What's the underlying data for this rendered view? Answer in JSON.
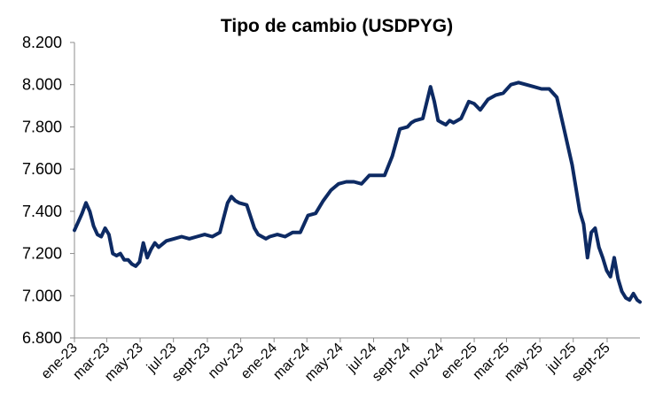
{
  "chart_data": {
    "type": "line",
    "title": "Tipo de cambio (USDPYG)",
    "xlabel": "",
    "ylabel": "",
    "ylim": [
      6800,
      8200
    ],
    "y_ticks": [
      6800,
      7000,
      7200,
      7400,
      7600,
      7800,
      8000,
      8200
    ],
    "y_tick_labels": [
      "6.800",
      "7.000",
      "7.200",
      "7.400",
      "7.600",
      "7.800",
      "8.000",
      "8.200"
    ],
    "x_tick_labels": [
      "ene-23",
      "mar-23",
      "may-23",
      "jul-23",
      "sept-23",
      "nov-23",
      "ene-24",
      "mar-24",
      "may-24",
      "jul-24",
      "sept-24",
      "nov-24",
      "ene-25",
      "mar-25",
      "may-25",
      "jul-25",
      "sept-25"
    ],
    "x_ticks": [
      "2023-01-01",
      "2023-03-01",
      "2023-05-01",
      "2023-07-01",
      "2023-09-01",
      "2023-11-01",
      "2024-01-01",
      "2024-03-01",
      "2024-05-01",
      "2024-07-01",
      "2024-09-01",
      "2024-11-01",
      "2025-01-01",
      "2025-03-01",
      "2025-05-01",
      "2025-07-01",
      "2025-09-01"
    ],
    "xlim": [
      "2023-01-01",
      "2025-10-31"
    ],
    "grid": false,
    "color": "#0d2a63",
    "series": [
      {
        "x": [
          "2023-01-01",
          "2023-01-08",
          "2023-01-15",
          "2023-01-22",
          "2023-01-29",
          "2023-02-05",
          "2023-02-12",
          "2023-02-19",
          "2023-02-26",
          "2023-03-05",
          "2023-03-12",
          "2023-03-19",
          "2023-03-26",
          "2023-04-02",
          "2023-04-09",
          "2023-04-16",
          "2023-04-23",
          "2023-04-30",
          "2023-05-07",
          "2023-05-14",
          "2023-05-21",
          "2023-05-28",
          "2023-06-04",
          "2023-06-18",
          "2023-07-02",
          "2023-07-16",
          "2023-07-30",
          "2023-08-13",
          "2023-08-27",
          "2023-09-10",
          "2023-09-24",
          "2023-10-01",
          "2023-10-08",
          "2023-10-15",
          "2023-10-22",
          "2023-10-29",
          "2023-11-12",
          "2023-11-26",
          "2023-12-03",
          "2023-12-10",
          "2023-12-17",
          "2023-12-24",
          "2024-01-07",
          "2024-01-21",
          "2024-02-04",
          "2024-02-18",
          "2024-03-03",
          "2024-03-17",
          "2024-03-31",
          "2024-04-14",
          "2024-04-28",
          "2024-05-12",
          "2024-05-26",
          "2024-06-09",
          "2024-06-23",
          "2024-07-07",
          "2024-07-21",
          "2024-08-04",
          "2024-08-18",
          "2024-09-01",
          "2024-09-08",
          "2024-09-15",
          "2024-09-29",
          "2024-10-13",
          "2024-10-20",
          "2024-10-27",
          "2024-11-03",
          "2024-11-10",
          "2024-11-17",
          "2024-11-24",
          "2024-12-08",
          "2024-12-22",
          "2025-01-01",
          "2025-01-12",
          "2025-01-26",
          "2025-02-09",
          "2025-02-23",
          "2025-03-09",
          "2025-03-23",
          "2025-04-06",
          "2025-04-20",
          "2025-05-04",
          "2025-05-18",
          "2025-06-01",
          "2025-06-15",
          "2025-06-29",
          "2025-07-06",
          "2025-07-13",
          "2025-07-20",
          "2025-07-27",
          "2025-08-03",
          "2025-08-10",
          "2025-08-17",
          "2025-08-24",
          "2025-08-31",
          "2025-09-07",
          "2025-09-14",
          "2025-09-21",
          "2025-09-28",
          "2025-10-05",
          "2025-10-12",
          "2025-10-19",
          "2025-10-26",
          "2025-10-31"
        ],
        "y": [
          7310,
          7350,
          7390,
          7440,
          7400,
          7330,
          7290,
          7280,
          7320,
          7290,
          7200,
          7190,
          7200,
          7170,
          7170,
          7150,
          7140,
          7160,
          7250,
          7180,
          7220,
          7250,
          7230,
          7260,
          7270,
          7280,
          7270,
          7280,
          7290,
          7280,
          7300,
          7370,
          7440,
          7470,
          7450,
          7440,
          7430,
          7320,
          7290,
          7280,
          7270,
          7280,
          7290,
          7280,
          7300,
          7300,
          7380,
          7390,
          7450,
          7500,
          7530,
          7540,
          7540,
          7530,
          7570,
          7570,
          7570,
          7660,
          7790,
          7800,
          7820,
          7830,
          7840,
          7990,
          7920,
          7830,
          7820,
          7810,
          7830,
          7820,
          7840,
          7920,
          7910,
          7880,
          7930,
          7950,
          7960,
          8000,
          8010,
          8000,
          7990,
          7980,
          7980,
          7940,
          7780,
          7620,
          7510,
          7400,
          7340,
          7180,
          7300,
          7320,
          7230,
          7180,
          7120,
          7090,
          7180,
          7080,
          7020,
          6990,
          6980,
          7010,
          6980,
          6970
        ]
      }
    ]
  }
}
